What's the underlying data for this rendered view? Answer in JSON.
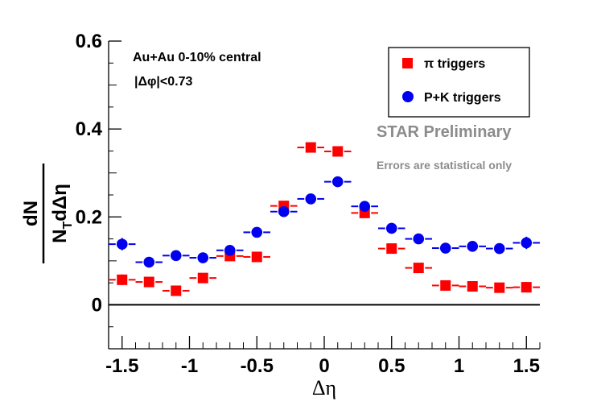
{
  "chart_data": {
    "type": "scatter",
    "title": "",
    "xlabel": "Δη",
    "ylabel_numerator": "dN",
    "ylabel_denominator": "N",
    "ylabel_subscript": "T",
    "ylabel_denominator_tail": "dΔη",
    "xlim": [
      -1.6,
      1.6
    ],
    "ylim": [
      -0.1,
      0.6
    ],
    "x_ticks": [
      -1.5,
      -1,
      -0.5,
      0,
      0.5,
      1,
      1.5
    ],
    "x_tick_labels": [
      "-1.5",
      "-1",
      "-0.5",
      "0",
      "0.5",
      "1",
      "1.5"
    ],
    "y_ticks": [
      0,
      0.2,
      0.4,
      0.6
    ],
    "y_tick_labels": [
      "0",
      "0.2",
      "0.4",
      "0.6"
    ],
    "zero_line": true,
    "bin_half_width": 0.1,
    "annotations": {
      "system": "Au+Au 0-10% central",
      "cut": "|Δφ|<0.73",
      "preliminary": "STAR Preliminary",
      "errors_note": "Errors are statistical only"
    },
    "legend_position": "top-right",
    "series": [
      {
        "name": "π triggers",
        "marker": "square",
        "color": "#ff0000",
        "x": [
          -1.5,
          -1.3,
          -1.1,
          -0.9,
          -0.7,
          -0.5,
          -0.3,
          -0.1,
          0.1,
          0.3,
          0.5,
          0.7,
          0.9,
          1.1,
          1.3,
          1.5
        ],
        "y": [
          0.057,
          0.052,
          0.032,
          0.061,
          0.111,
          0.109,
          0.225,
          0.358,
          0.349,
          0.209,
          0.128,
          0.084,
          0.044,
          0.042,
          0.039,
          0.04
        ],
        "err": [
          0.012,
          0.008,
          0.008,
          0.008,
          0.008,
          0.008,
          0.008,
          0.008,
          0.008,
          0.008,
          0.008,
          0.008,
          0.008,
          0.008,
          0.008,
          0.012
        ]
      },
      {
        "name": "P+K triggers",
        "marker": "circle",
        "color": "#0000ee",
        "x": [
          -1.5,
          -1.3,
          -1.1,
          -0.9,
          -0.7,
          -0.5,
          -0.3,
          -0.1,
          0.1,
          0.3,
          0.5,
          0.7,
          0.9,
          1.1,
          1.3,
          1.5
        ],
        "y": [
          0.138,
          0.097,
          0.112,
          0.107,
          0.124,
          0.165,
          0.212,
          0.241,
          0.28,
          0.224,
          0.174,
          0.15,
          0.129,
          0.133,
          0.128,
          0.141
        ],
        "err": [
          0.014,
          0.01,
          0.009,
          0.009,
          0.009,
          0.009,
          0.009,
          0.009,
          0.009,
          0.009,
          0.009,
          0.009,
          0.009,
          0.009,
          0.012,
          0.014
        ]
      }
    ]
  }
}
